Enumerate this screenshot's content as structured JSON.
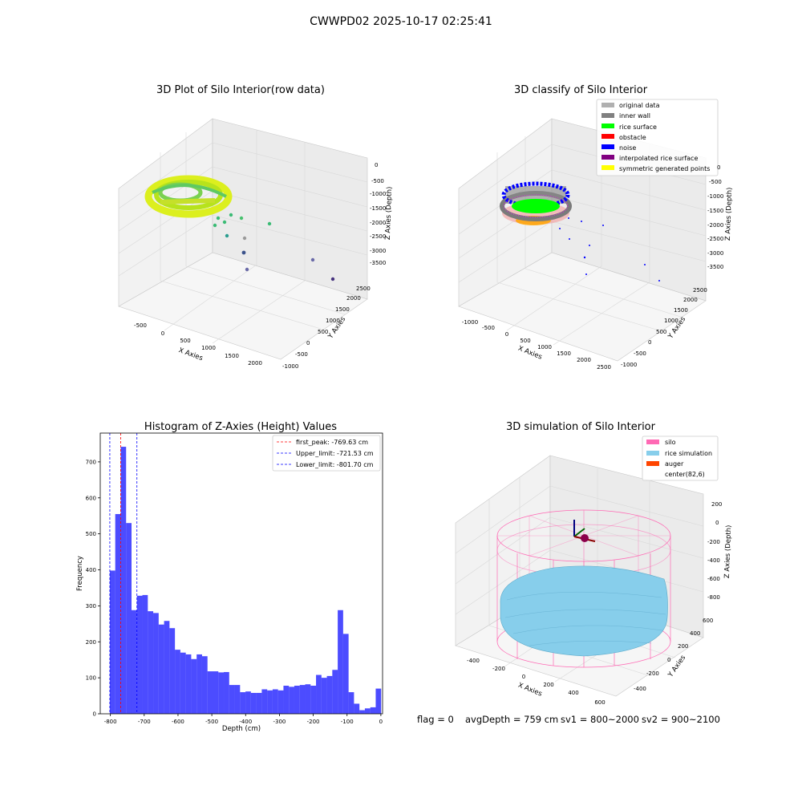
{
  "figure": {
    "suptitle": "CWWPD02 2025-10-17 02:25:41",
    "footer": {
      "flag": "flag = 0",
      "avg_depth": "avgDepth = 759 cm",
      "sv1": "sv1 = 800~2000",
      "sv2": "sv2 = 900~2100"
    }
  },
  "panels": {
    "raw": {
      "title": "3D Plot of Silo Interior(row data)",
      "xlabel": "X Axies",
      "ylabel": "Y Axies",
      "zlabel": "Z Axies (Depth)",
      "xticks": [
        "-500",
        "0",
        "500",
        "1000",
        "1500",
        "2000"
      ],
      "yticks": [
        "-1000",
        "-500",
        "0",
        "500",
        "1000",
        "1500",
        "2000",
        "2500"
      ],
      "zticks": [
        "0",
        "-500",
        "-1000",
        "-1500",
        "-2000",
        "-2500",
        "-3000",
        "-3500"
      ]
    },
    "classify": {
      "title": "3D classify of Silo Interior",
      "xlabel": "X Axies",
      "ylabel": "Y Axies",
      "zlabel": "Z Axies (Depth)",
      "xticks": [
        "-1000",
        "-500",
        "0",
        "500",
        "1000",
        "1500",
        "2000",
        "2500"
      ],
      "yticks": [
        "-1000",
        "-500",
        "0",
        "500",
        "1000",
        "1500",
        "2000",
        "2500"
      ],
      "zticks": [
        "0",
        "-500",
        "-1000",
        "-1500",
        "-2000",
        "-2500",
        "-3000",
        "-3500"
      ],
      "legend": [
        {
          "label": "original data",
          "color": "#b0b0b0"
        },
        {
          "label": "inner wall",
          "color": "#808080"
        },
        {
          "label": "rice surface",
          "color": "#00ff00"
        },
        {
          "label": "obstacle",
          "color": "#ff0000"
        },
        {
          "label": "noise",
          "color": "#0000ff"
        },
        {
          "label": "interpolated rice surface",
          "color": "#800080"
        },
        {
          "label": "symmetric generated points",
          "color": "#ffff00"
        }
      ]
    },
    "simulation": {
      "title": "3D simulation of Silo Interior",
      "xlabel": "X Axies",
      "ylabel": "Y Axies",
      "zlabel": "Z Axies (Depth)",
      "xticks": [
        "-400",
        "-200",
        "0",
        "200",
        "400",
        "600"
      ],
      "yticks": [
        "-400",
        "-200",
        "0",
        "200",
        "400",
        "600"
      ],
      "zticks": [
        "200",
        "0",
        "-200",
        "-400",
        "-600",
        "-800"
      ],
      "legend": [
        {
          "label": "silo",
          "color": "#ff69b4"
        },
        {
          "label": "rice simulation",
          "color": "#87ceeb"
        },
        {
          "label": "auger",
          "color": "#ff4500"
        },
        {
          "label": "center(82,6)",
          "color": ""
        }
      ]
    }
  },
  "chart_data": {
    "type": "bar",
    "title": "Histogram of Z-Axies (Height) Values",
    "xlabel": "Depth (cm)",
    "ylabel": "Frequency",
    "xlim": [
      -830,
      5
    ],
    "ylim": [
      0,
      780
    ],
    "xticks": [
      -800,
      -700,
      -600,
      -500,
      -400,
      -300,
      -200,
      -100,
      0
    ],
    "yticks": [
      0,
      100,
      200,
      300,
      400,
      500,
      600,
      700
    ],
    "bar_color": "#0000ff",
    "bin_width": 16.05,
    "bin_start": -801.7,
    "values": [
      398,
      555,
      742,
      530,
      288,
      328,
      330,
      285,
      280,
      248,
      258,
      238,
      178,
      170,
      165,
      152,
      165,
      160,
      118,
      118,
      115,
      116,
      80,
      80,
      60,
      62,
      58,
      58,
      68,
      65,
      68,
      65,
      78,
      75,
      78,
      80,
      82,
      78,
      108,
      100,
      105,
      122,
      288,
      222,
      60,
      28,
      10,
      15,
      18,
      70
    ],
    "lines": [
      {
        "label": "first_peak: -769.63 cm",
        "x": -769.63,
        "color": "#ff0000"
      },
      {
        "label": "Upper_limit: -721.53 cm",
        "x": -721.53,
        "color": "#0000ff"
      },
      {
        "label": "Lower_limit: -801.70 cm",
        "x": -801.7,
        "color": "#0000ff"
      }
    ],
    "legend_position": "top-right"
  }
}
